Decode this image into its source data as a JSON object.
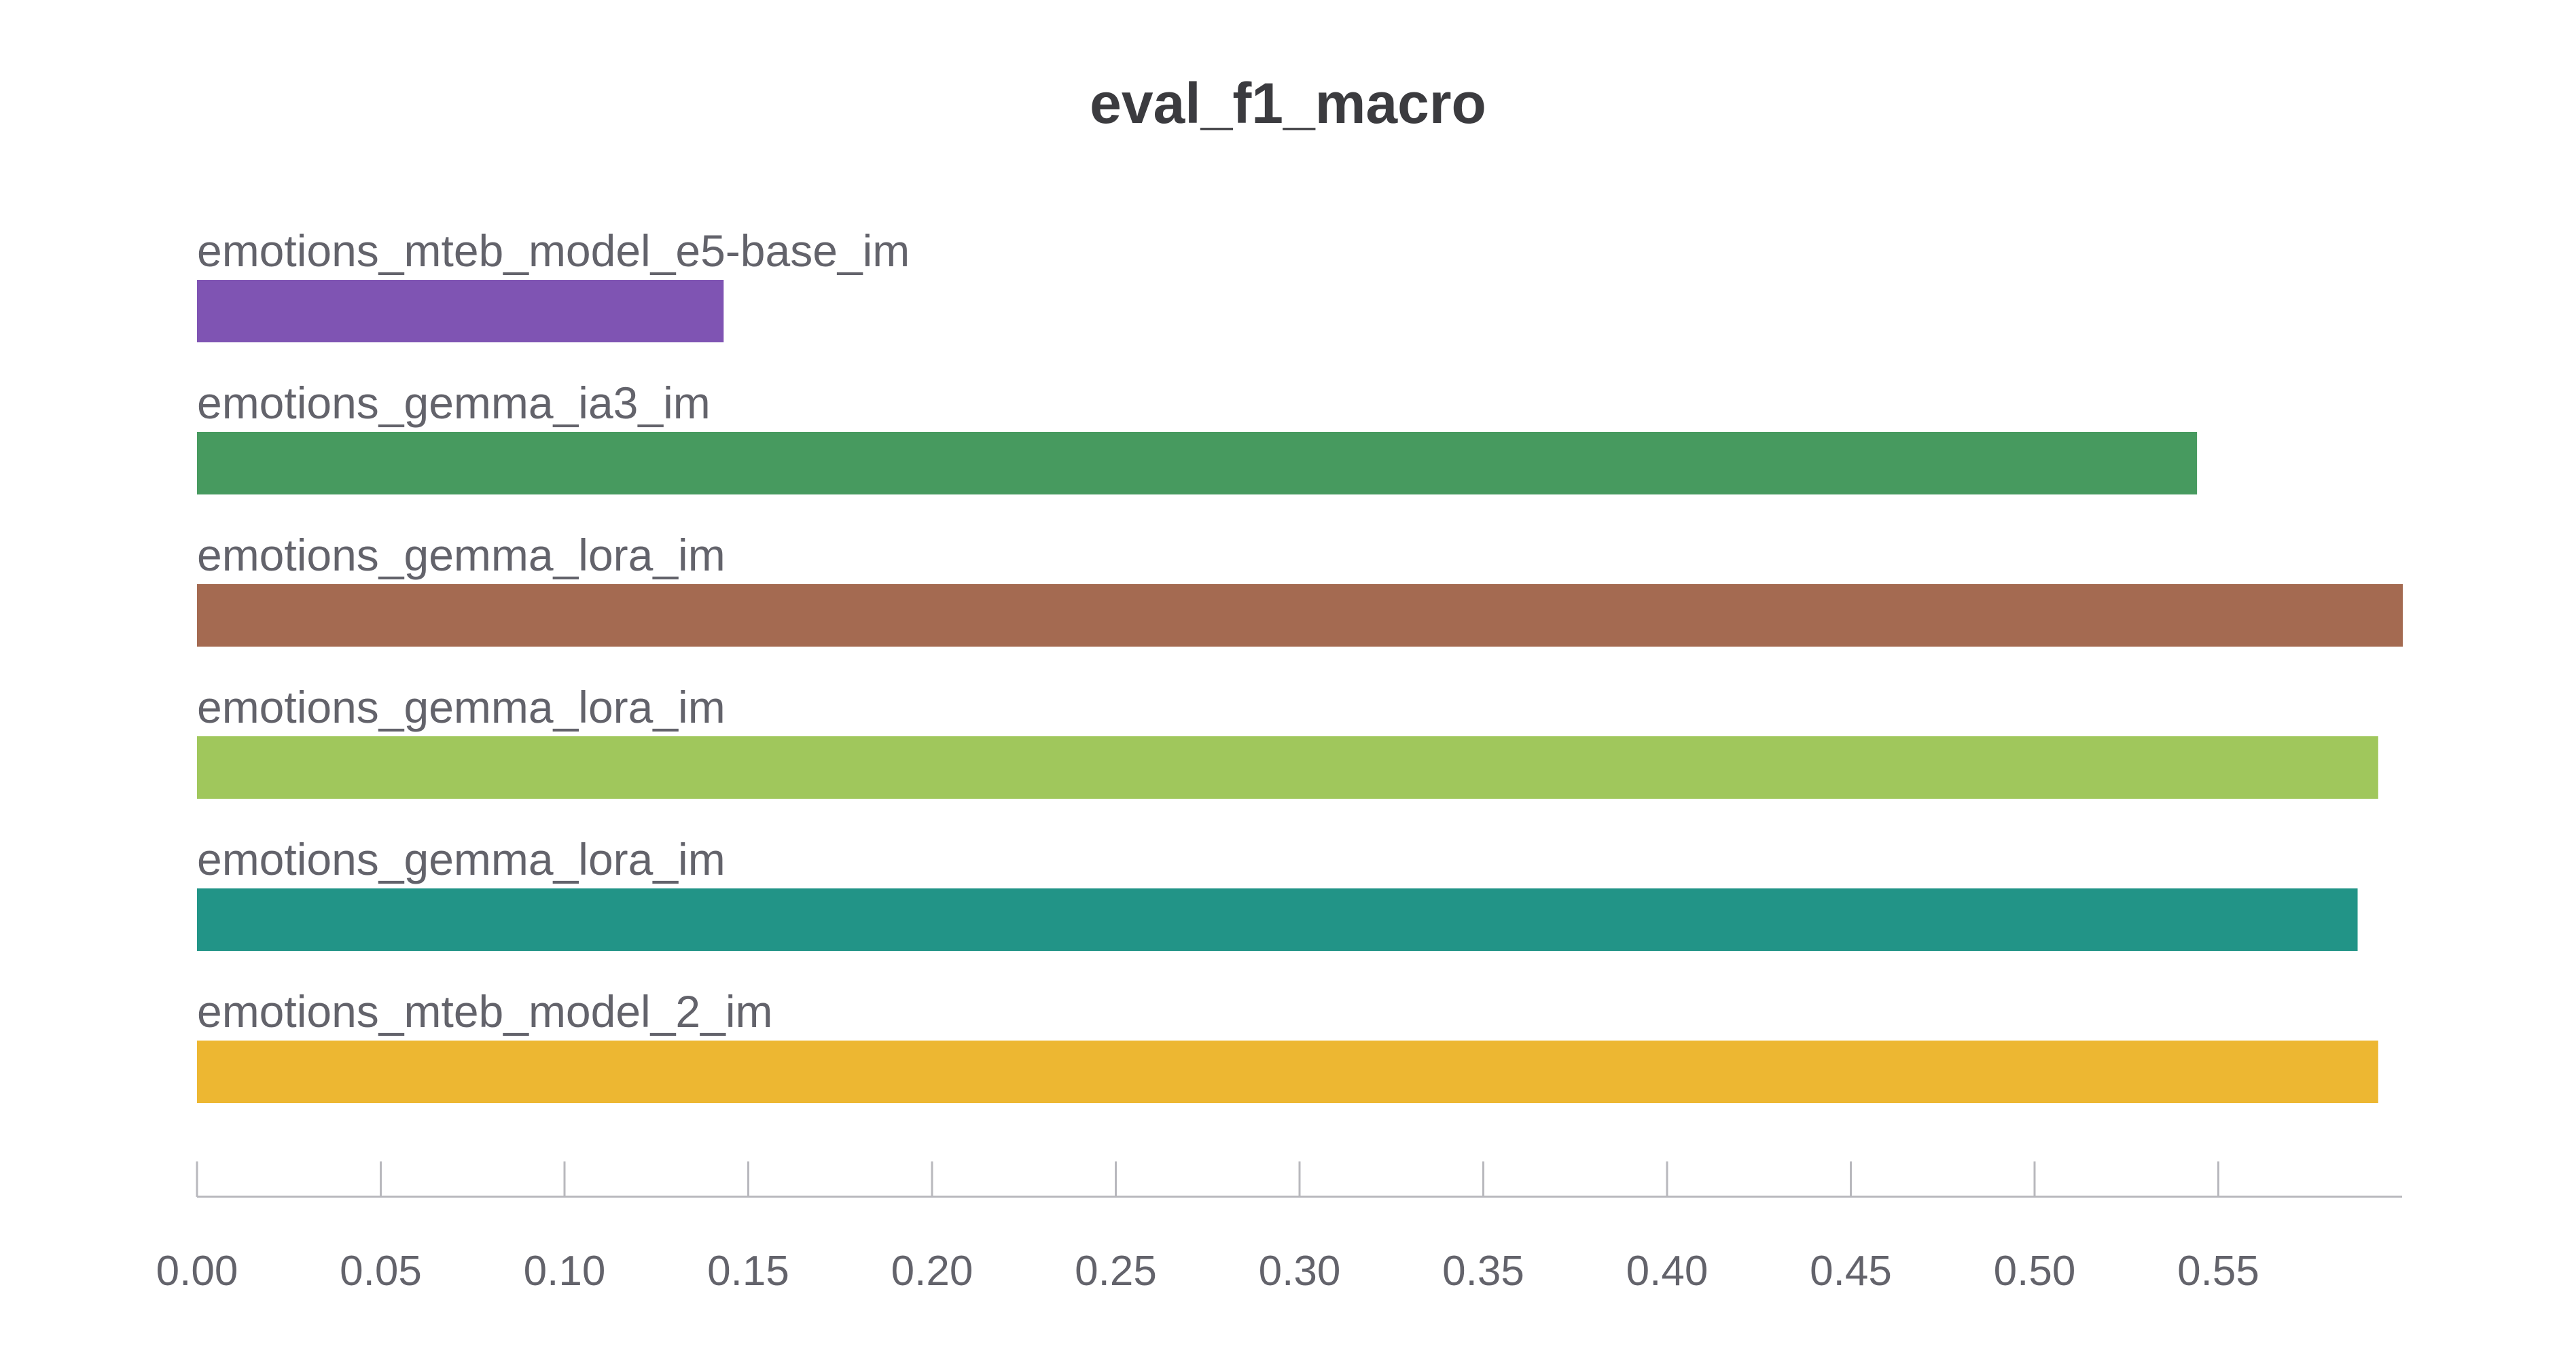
{
  "chart_data": {
    "type": "bar",
    "orientation": "horizontal",
    "title": "eval_f1_macro",
    "categories": [
      "emotions_mteb_model_e5-base_im",
      "emotions_gemma_ia3_im",
      "emotions_gemma_lora_im",
      "emotions_gemma_lora_im",
      "emotions_gemma_lora_im",
      "emotions_mteb_model_2_im"
    ],
    "values": [
      0.1433,
      0.5442,
      0.6002,
      0.5935,
      0.5879,
      0.5935
    ],
    "colors": [
      "#7f54b3",
      "#479a5f",
      "#a46a51",
      "#a0c75c",
      "#229487",
      "#edb732"
    ],
    "xlim": [
      0,
      0.6
    ],
    "xticks": [
      "0.00",
      "0.05",
      "0.10",
      "0.15",
      "0.20",
      "0.25",
      "0.30",
      "0.35",
      "0.40",
      "0.45",
      "0.50",
      "0.55"
    ],
    "grid": false,
    "legend": "none"
  }
}
